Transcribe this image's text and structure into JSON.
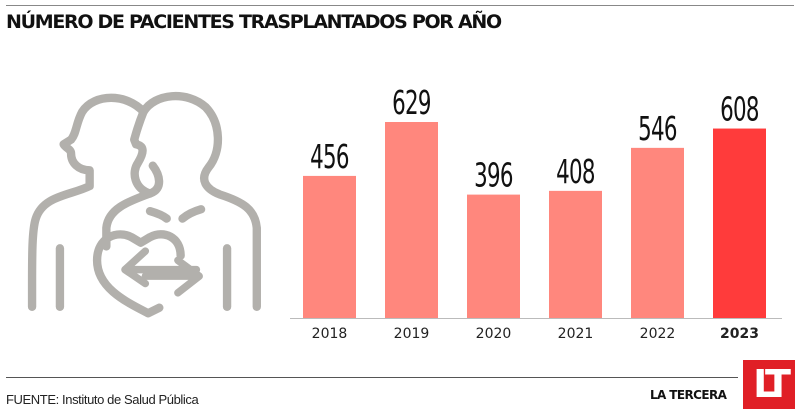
{
  "header": {
    "title": "NÚMERO DE PACIENTES TRASPLANTADOS POR AÑO"
  },
  "illustration": {
    "icon": "organ-transplant-people-heart-icon",
    "color": "#b2b0ac"
  },
  "chart_data": {
    "type": "bar",
    "title": "NÚMERO DE PACIENTES TRASPLANTADOS POR AÑO",
    "categories": [
      "2018",
      "2019",
      "2020",
      "2021",
      "2022",
      "2023"
    ],
    "values": [
      456,
      629,
      396,
      408,
      546,
      608
    ],
    "data_labels": [
      "456",
      "629",
      "396",
      "408",
      "546",
      "608"
    ],
    "highlight_index": 5,
    "colors": {
      "default": "#ff877d",
      "highlight": "#ff3b3b",
      "axis": "#bbbbbb",
      "label": "#111111"
    },
    "xlabel": "",
    "ylabel": "",
    "ylim": [
      0,
      640
    ],
    "grid": false,
    "legend": "none"
  },
  "footer": {
    "source_label": "FUENTE:",
    "source_text": " Instituto de Salud Pública",
    "brand": "LA TERCERA",
    "logo_text": "LT",
    "logo_color": "#e01f26"
  }
}
